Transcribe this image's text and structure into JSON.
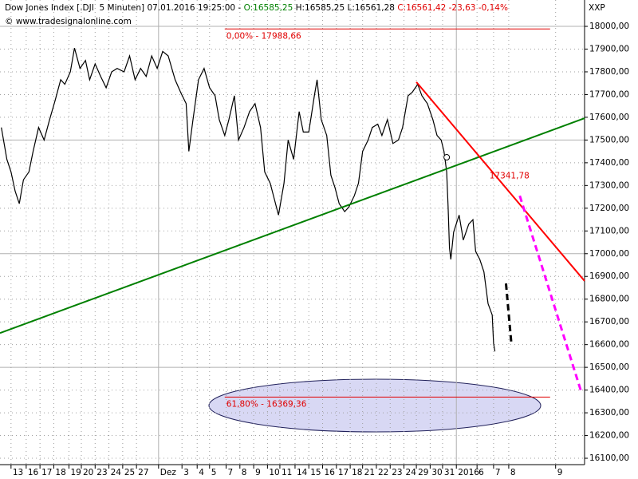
{
  "chart_data": {
    "type": "line",
    "title": [
      {
        "text": "Dow Jones Index [.DJI  5 Minuten] 07.01.2016 19:25:00 - ",
        "color": "#000000"
      },
      {
        "text": "O:16585,25",
        "color": "#008000"
      },
      {
        "text": " H:16585,25 L:16561,28 ",
        "color": "#000000"
      },
      {
        "text": "C:16561,42 -23,63 -0,14%",
        "color": "#e00000"
      }
    ],
    "subtitle": "© www.tradesignalonline.com",
    "y_label": "XXP",
    "xlim": [
      -0.8,
      41.6
    ],
    "ylim": [
      16072,
      18116
    ],
    "xticks": [
      {
        "value": 0,
        "label": "13"
      },
      {
        "value": 1.1,
        "label": "16"
      },
      {
        "value": 2.1,
        "label": "17"
      },
      {
        "value": 3.1,
        "label": "18"
      },
      {
        "value": 4.2,
        "label": "19"
      },
      {
        "value": 5.1,
        "label": "20"
      },
      {
        "value": 6.1,
        "label": "23"
      },
      {
        "value": 7.1,
        "label": "24"
      },
      {
        "value": 8.1,
        "label": "25"
      },
      {
        "value": 9.1,
        "label": "27"
      },
      {
        "value": 10.7,
        "label": "Dez"
      },
      {
        "value": 12.4,
        "label": "3"
      },
      {
        "value": 13.5,
        "label": "4"
      },
      {
        "value": 14.4,
        "label": "5"
      },
      {
        "value": 15.6,
        "label": "7"
      },
      {
        "value": 16.6,
        "label": "8"
      },
      {
        "value": 17.6,
        "label": "9"
      },
      {
        "value": 18.6,
        "label": "10"
      },
      {
        "value": 19.5,
        "label": "11"
      },
      {
        "value": 20.6,
        "label": "14"
      },
      {
        "value": 21.6,
        "label": "15"
      },
      {
        "value": 22.6,
        "label": "16"
      },
      {
        "value": 23.6,
        "label": "17"
      },
      {
        "value": 24.6,
        "label": "18"
      },
      {
        "value": 25.5,
        "label": "21"
      },
      {
        "value": 26.5,
        "label": "22"
      },
      {
        "value": 27.5,
        "label": "23"
      },
      {
        "value": 28.5,
        "label": "24"
      },
      {
        "value": 29.4,
        "label": "29"
      },
      {
        "value": 30.4,
        "label": "30"
      },
      {
        "value": 31.3,
        "label": "31"
      },
      {
        "value": 32.3,
        "label": "2016"
      },
      {
        "value": 33.8,
        "label": "6"
      },
      {
        "value": 35.0,
        "label": "7"
      },
      {
        "value": 36.1,
        "label": "8"
      },
      {
        "value": 39.5,
        "label": "9"
      }
    ],
    "yticks": [
      {
        "value": 16100,
        "label": "16100,00"
      },
      {
        "value": 16200,
        "label": "16200,00"
      },
      {
        "value": 16300,
        "label": "16300,00"
      },
      {
        "value": 16400,
        "label": "16400,00"
      },
      {
        "value": 16500,
        "label": "16500,00"
      },
      {
        "value": 16600,
        "label": "16600,00"
      },
      {
        "value": 16700,
        "label": "16700,00"
      },
      {
        "value": 16800,
        "label": "16800,00"
      },
      {
        "value": 16900,
        "label": "16900,00"
      },
      {
        "value": 17000,
        "label": "17000,00"
      },
      {
        "value": 17100,
        "label": "17100,00"
      },
      {
        "value": 17200,
        "label": "17200,00"
      },
      {
        "value": 17300,
        "label": "17300,00"
      },
      {
        "value": 17400,
        "label": "17400,00"
      },
      {
        "value": 17500,
        "label": "17500,00"
      },
      {
        "value": 17600,
        "label": "17600,00"
      },
      {
        "value": 17700,
        "label": "17700,00"
      },
      {
        "value": 17800,
        "label": "17800,00"
      },
      {
        "value": 17900,
        "label": "17900,00"
      },
      {
        "value": 18000,
        "label": "18000,00"
      }
    ],
    "grid": true,
    "series": [
      {
        "color": "#000000",
        "x": [
          -0.7,
          -0.3,
          0,
          0.3,
          0.6,
          0.9,
          1.3,
          1.6,
          2.0,
          2.4,
          2.8,
          3.2,
          3.6,
          3.9,
          4.3,
          4.6,
          5.0,
          5.4,
          5.7,
          6.1,
          6.5,
          6.9,
          7.3,
          7.7,
          8.2,
          8.6,
          9.0,
          9.4,
          9.8,
          10.2,
          10.6,
          11.0,
          11.4,
          11.9,
          12.3,
          12.7,
          12.9,
          13.2,
          13.6,
          14.0,
          14.4,
          14.8,
          15.1,
          15.5,
          15.8,
          16.2,
          16.5,
          16.9,
          17.3,
          17.7,
          18.1,
          18.4,
          18.8,
          19.1,
          19.4,
          19.8,
          20.1,
          20.5,
          20.9,
          21.2,
          21.6,
          22.0,
          22.2,
          22.5,
          22.9,
          23.2,
          23.5,
          23.8,
          24.2,
          24.5,
          24.9,
          25.2,
          25.5,
          25.9,
          26.2,
          26.6,
          26.9,
          27.3,
          27.7,
          28.1,
          28.4,
          28.8,
          29.1,
          29.5,
          29.8,
          30.2,
          30.6,
          30.9,
          31.2,
          31.4,
          31.6,
          31.7,
          31.8,
          31.9,
          32.1,
          32.5,
          32.8,
          33.2,
          33.5,
          33.7,
          34.0,
          34.3,
          34.6,
          34.9,
          35.0,
          35.1
        ],
        "values": [
          17555,
          17415,
          17360,
          17275,
          17220,
          17325,
          17360,
          17450,
          17555,
          17500,
          17590,
          17675,
          17765,
          17745,
          17800,
          17905,
          17815,
          17850,
          17765,
          17835,
          17780,
          17730,
          17800,
          17815,
          17800,
          17870,
          17765,
          17815,
          17780,
          17870,
          17815,
          17890,
          17870,
          17765,
          17710,
          17660,
          17450,
          17590,
          17765,
          17815,
          17730,
          17695,
          17590,
          17520,
          17590,
          17695,
          17500,
          17555,
          17625,
          17660,
          17555,
          17360,
          17310,
          17240,
          17170,
          17310,
          17500,
          17415,
          17625,
          17535,
          17535,
          17695,
          17765,
          17590,
          17520,
          17345,
          17290,
          17220,
          17185,
          17205,
          17255,
          17310,
          17450,
          17500,
          17555,
          17570,
          17520,
          17590,
          17485,
          17500,
          17555,
          17695,
          17710,
          17745,
          17695,
          17660,
          17590,
          17520,
          17500,
          17450,
          17360,
          17205,
          17025,
          16975,
          17095,
          17170,
          17060,
          17130,
          17150,
          17010,
          16975,
          16920,
          16780,
          16730,
          16605,
          16570
        ]
      }
    ],
    "lines": [
      {
        "color": "#008000",
        "x": [
          -0.8,
          41.6
        ],
        "values": [
          16651,
          17596
        ]
      },
      {
        "color": "#ff0000",
        "x": [
          29.4,
          41.6
        ],
        "values": [
          17755,
          16880
        ]
      },
      {
        "color": "#ff00ff",
        "dash": true,
        "x": [
          36.9,
          41.4
        ],
        "values": [
          17255,
          16384
        ]
      },
      {
        "color": "#000000",
        "dash": true,
        "x": [
          35.9,
          36.3
        ],
        "values": [
          16869,
          16598
        ]
      }
    ],
    "levels": [
      {
        "value": 17988.66,
        "label": "0,00% - 17988,66",
        "x": [
          15.5,
          39.1
        ],
        "color": "#e00000"
      },
      {
        "value": 16369.36,
        "label": "61,80% - 16369,36",
        "x": [
          15.5,
          39.1
        ],
        "color": "#e00000"
      }
    ],
    "annotations": [
      {
        "text": "17341,78",
        "value": 17341.78,
        "x": 34.7,
        "color": "#e00000"
      }
    ],
    "markers": [
      {
        "x": 31.6,
        "value": 17424
      }
    ]
  }
}
